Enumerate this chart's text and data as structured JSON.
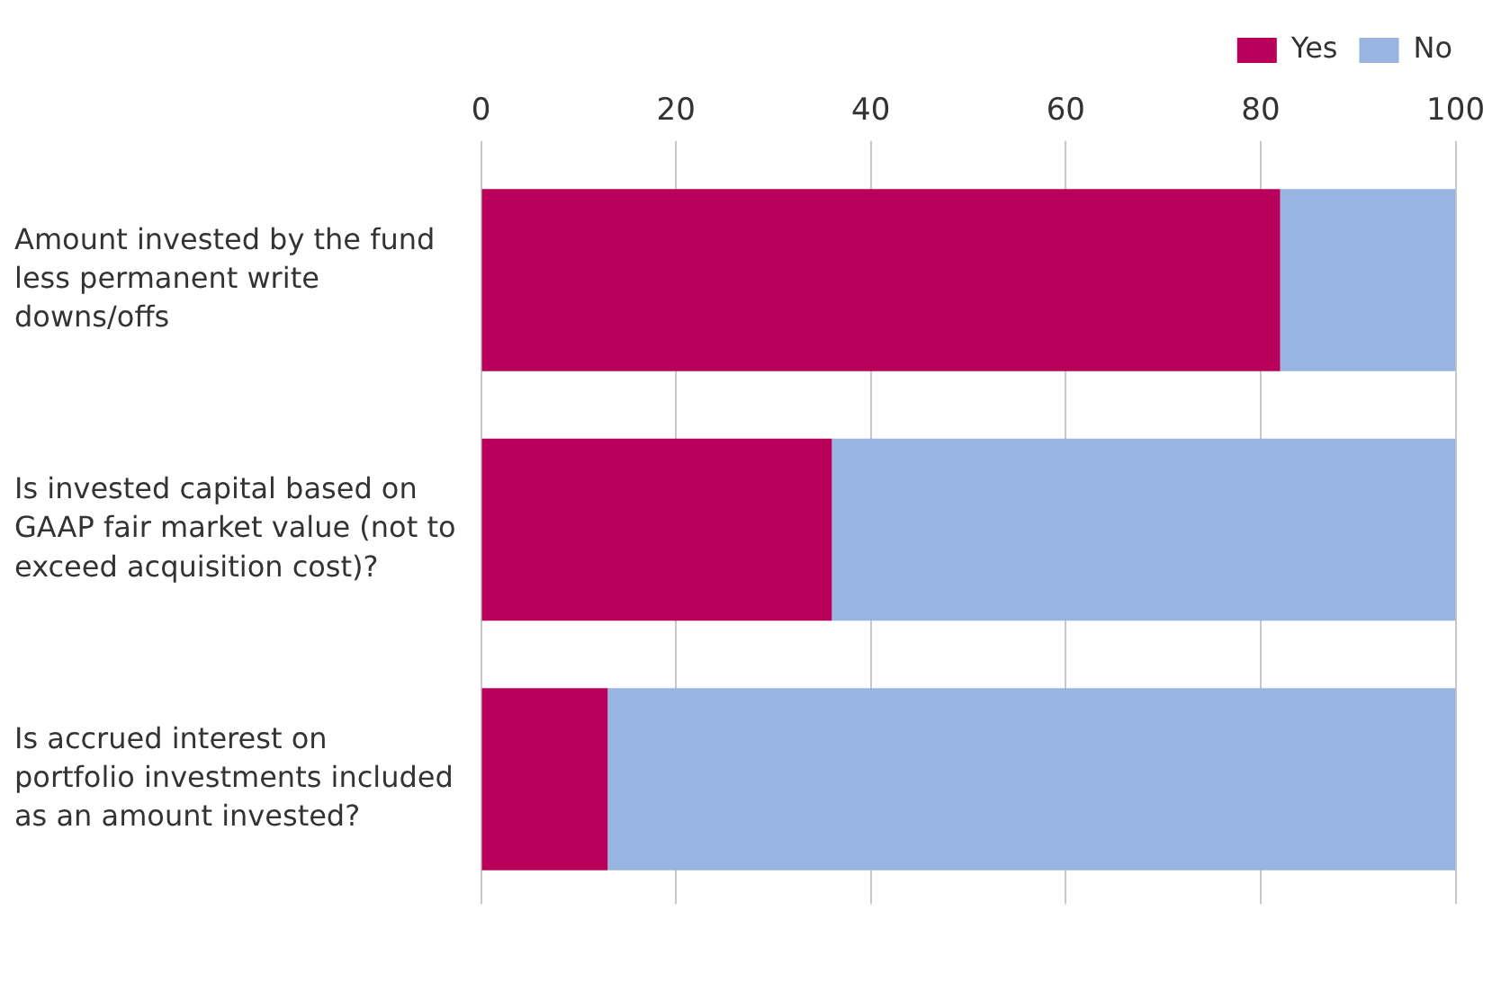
{
  "chart_data": {
    "type": "bar",
    "orientation": "horizontal",
    "stacked": true,
    "categories": [
      "Amount invested by the fund less permanent write downs/offs",
      "Is invested capital based on GAAP fair market value (not to exceed acquisition cost)?",
      "Is accrued interest on portfolio investments included as an amount invested?"
    ],
    "series": [
      {
        "name": "Yes",
        "color": "#b8005a",
        "values": [
          82,
          36,
          13
        ]
      },
      {
        "name": "No",
        "color": "#98b4e0",
        "values": [
          18,
          64,
          87
        ]
      }
    ],
    "xlim": [
      0,
      100
    ],
    "xticks": [
      0,
      20,
      40,
      60,
      80,
      100
    ],
    "grid": "x",
    "legend": "top right"
  }
}
